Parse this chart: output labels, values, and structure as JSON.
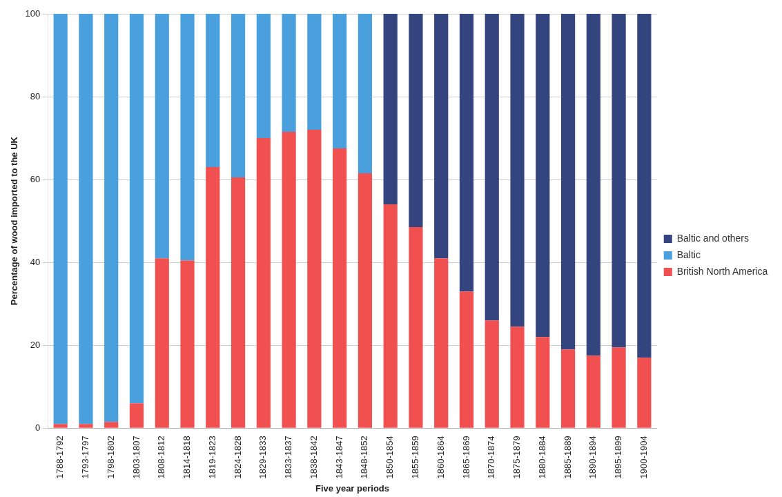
{
  "chart_data": {
    "type": "bar",
    "stacked": true,
    "xlabel": "Five year periods",
    "ylabel": "Percentage of wood imported to the UK",
    "categories": [
      "1788-1792",
      "1793-1797",
      "1798-1802",
      "1803-1807",
      "1808-1812",
      "1814-1818",
      "1819-1823",
      "1824-1828",
      "1829-1833",
      "1833-1837",
      "1838-1842",
      "1843-1847",
      "1848-1852",
      "1850-1854",
      "1855-1859",
      "1860-1864",
      "1865-1869",
      "1870-1874",
      "1875-1879",
      "1880-1884",
      "1885-1889",
      "1890-1894",
      "1895-1899",
      "1900-1904"
    ],
    "series": [
      {
        "name": "British North America",
        "color": "#f05050",
        "values": [
          1,
          1,
          1.5,
          6,
          41,
          40.5,
          63,
          60.5,
          70,
          71.5,
          72,
          67.5,
          61.5,
          54,
          48.5,
          41,
          33,
          26,
          24.5,
          22,
          19,
          17.5,
          19.5,
          17
        ]
      },
      {
        "name": "Baltic",
        "color": "#4aa0dc",
        "values": [
          99,
          99,
          98.5,
          94,
          59,
          59.5,
          37,
          39.5,
          30,
          28.5,
          28,
          32.5,
          38.5,
          null,
          null,
          null,
          null,
          null,
          null,
          null,
          null,
          null,
          null,
          null
        ]
      },
      {
        "name": "Baltic and others",
        "color": "#34447e",
        "values": [
          null,
          null,
          null,
          null,
          null,
          null,
          null,
          null,
          null,
          null,
          null,
          null,
          null,
          46,
          51.5,
          59,
          67,
          74,
          75.5,
          78,
          81,
          82.5,
          80.5,
          83
        ]
      }
    ],
    "ylim": [
      0,
      100
    ],
    "yticks": [
      0,
      20,
      40,
      60,
      80,
      100
    ],
    "grid": "y",
    "legend": "right"
  }
}
